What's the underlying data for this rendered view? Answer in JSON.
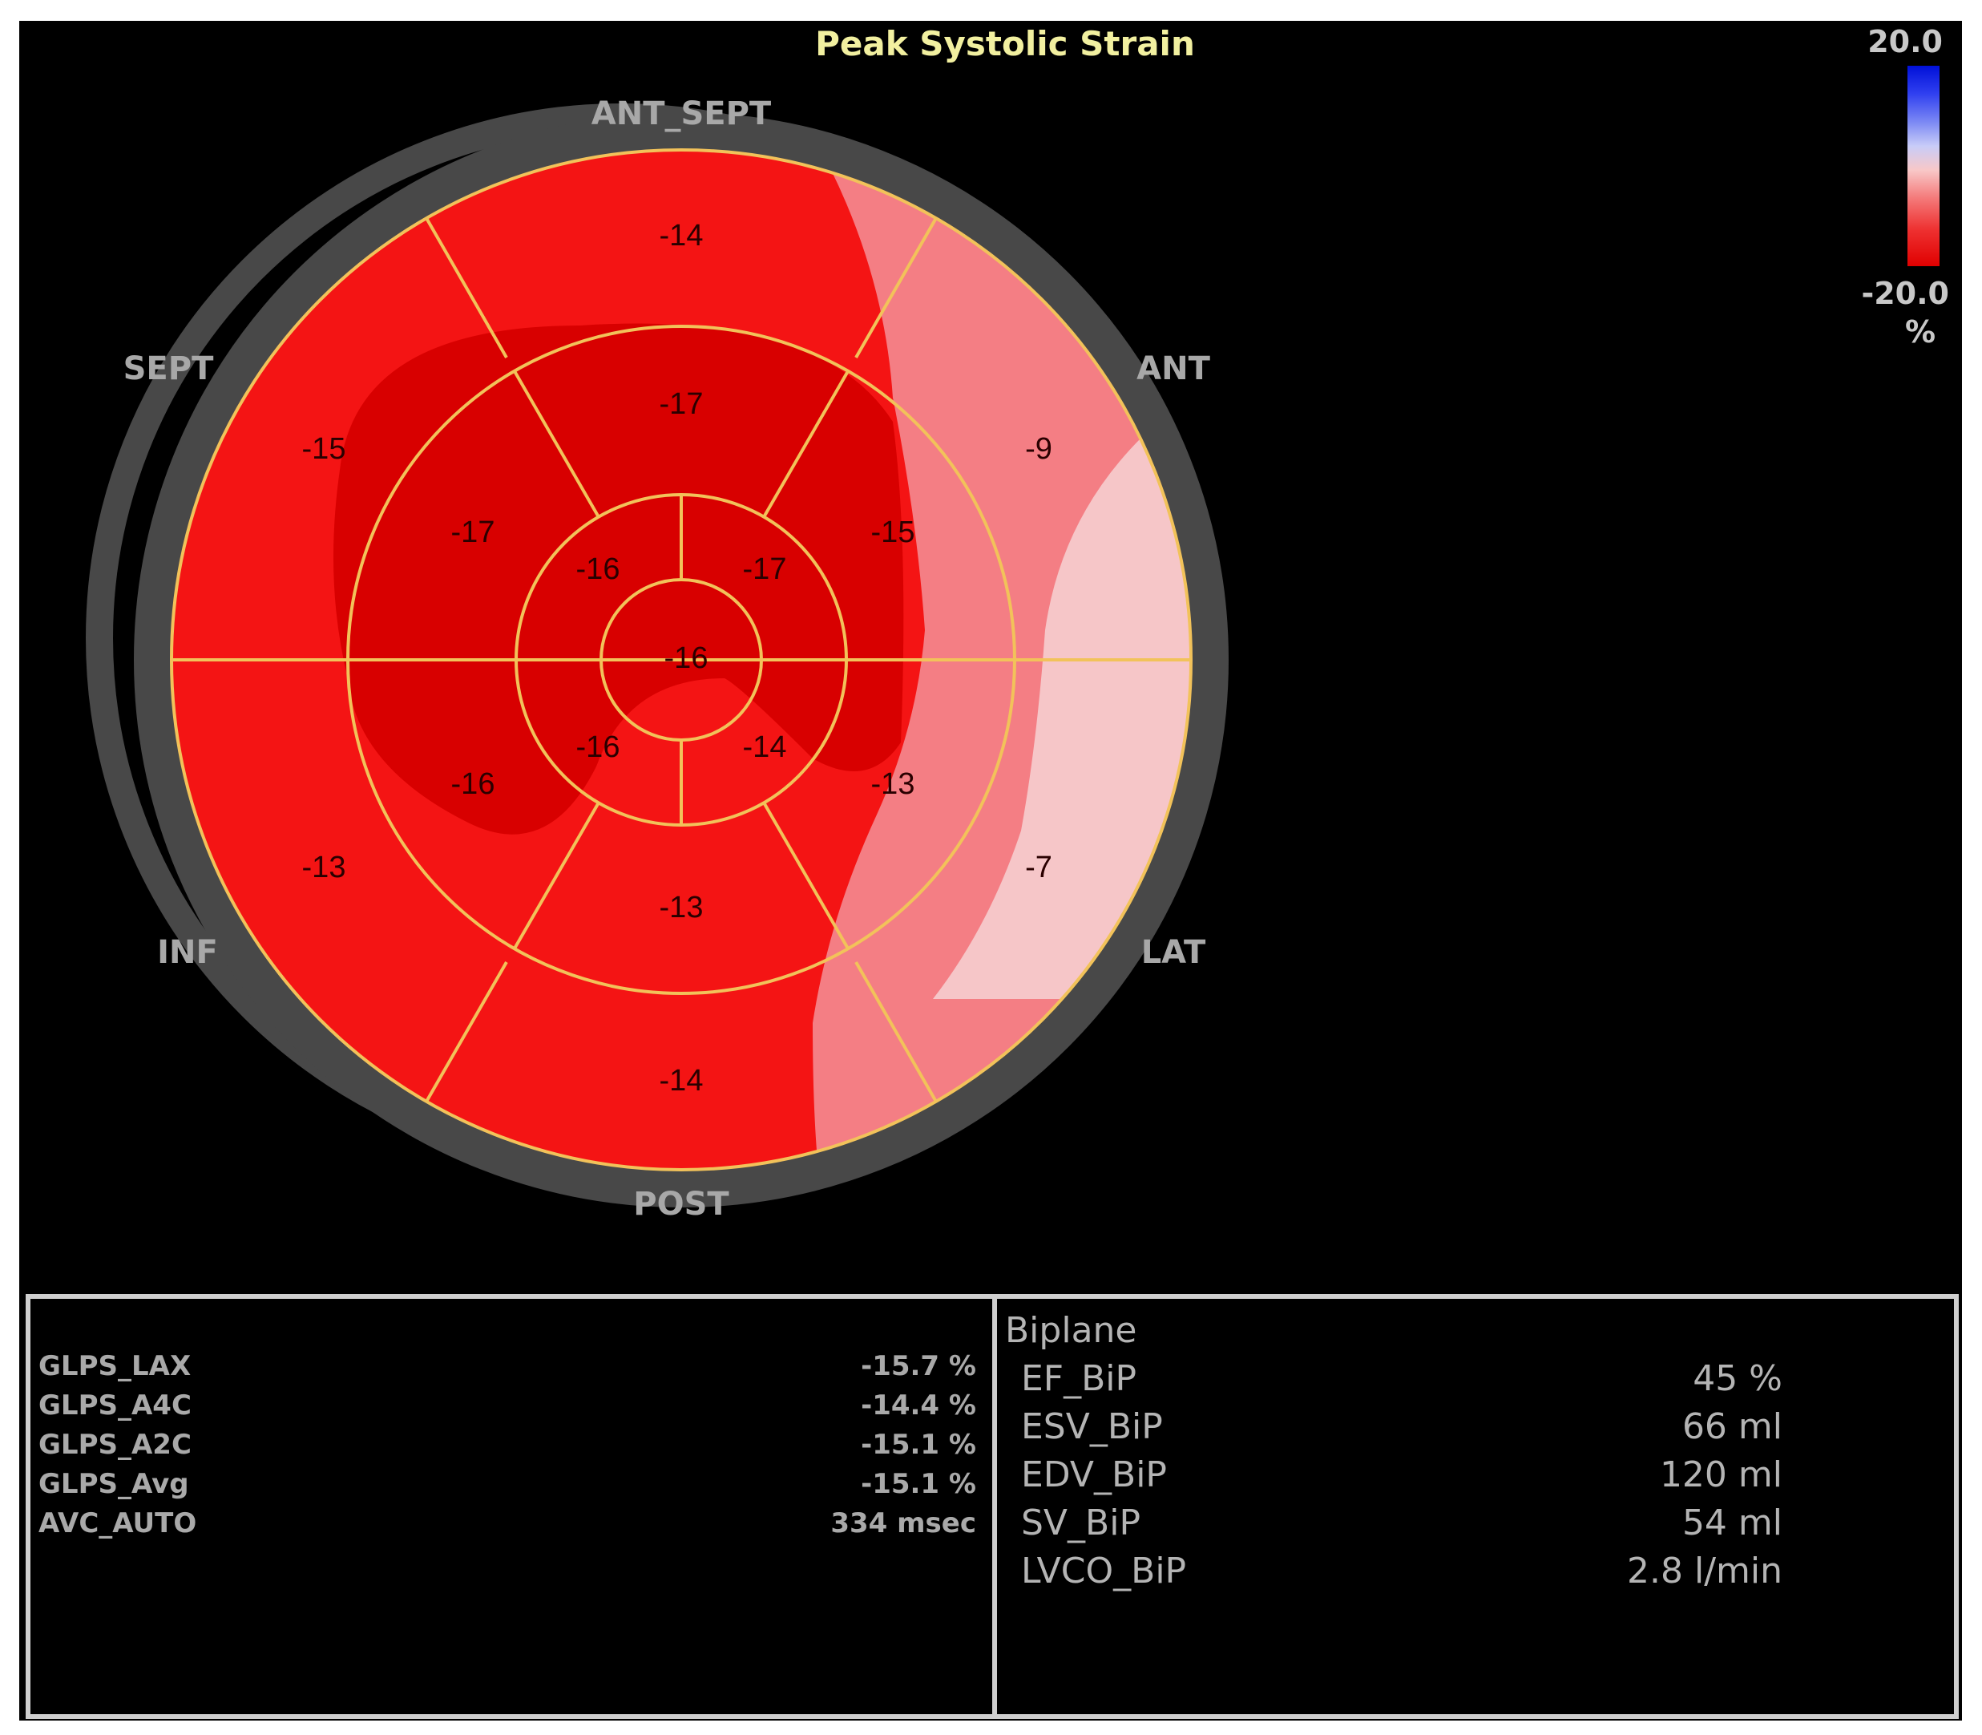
{
  "title": "Peak Systolic Strain",
  "scale": {
    "max": "20.0",
    "min": "-20.0",
    "unit": "%"
  },
  "directions": {
    "top": "ANT_SEPT",
    "upper_left": "SEPT",
    "upper_right": "ANT",
    "lower_left": "INF",
    "lower_right": "LAT",
    "bottom": "POST"
  },
  "segments": {
    "basal": [
      "-14",
      "-9",
      "-7",
      "-14",
      "-13",
      "-15"
    ],
    "mid": [
      "-17",
      "-15",
      "-13",
      "-13",
      "-16",
      "-17"
    ],
    "apical": [
      "-17",
      "-14",
      "-16",
      "-16"
    ],
    "apex": "-16"
  },
  "colors": {
    "deep_red": "#d80000",
    "red": "#f41414",
    "pink": "#f47e84",
    "light_pink": "#f6c6c8",
    "ring": "#484848",
    "segment_line": "#f2c25a"
  },
  "glps": [
    {
      "name": "GLPS_LAX",
      "value": "-15.7 %"
    },
    {
      "name": "GLPS_A4C",
      "value": "-14.4 %"
    },
    {
      "name": "GLPS_A2C",
      "value": "-15.1 %"
    },
    {
      "name": "GLPS_Avg",
      "value": "-15.1 %"
    },
    {
      "name": "AVC_AUTO",
      "value": "334 msec"
    }
  ],
  "biplane": {
    "title": "Biplane",
    "rows": [
      {
        "name": "EF_BiP",
        "value": "45 %"
      },
      {
        "name": "ESV_BiP",
        "value": "66 ml"
      },
      {
        "name": "EDV_BiP",
        "value": "120 ml"
      },
      {
        "name": "SV_BiP",
        "value": "54 ml"
      },
      {
        "name": "LVCO_BiP",
        "value": "2.8 l/min"
      }
    ]
  }
}
